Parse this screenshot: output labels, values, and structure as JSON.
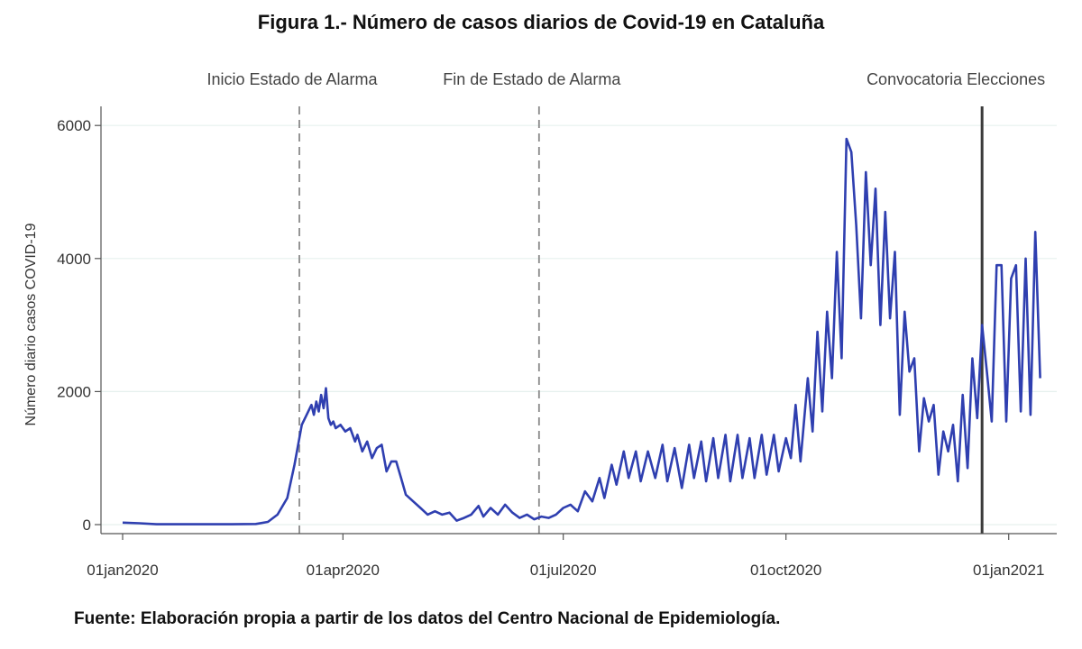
{
  "title": "Figura 1.- Número de casos diarios de Covid-19 en Cataluña",
  "source": "Fuente: Elaboración propia a partir de los datos del Centro Nacional de Epidemiología.",
  "colors": {
    "series": "#2f3fb0",
    "event_line": "#8a8a8a",
    "election_line": "#3a3a3a",
    "grid": "#e6f0ee",
    "axis": "#555555"
  },
  "chart_data": {
    "type": "line",
    "title": "Figura 1.- Número de casos diarios de Covid-19 en Cataluña",
    "xlabel": "",
    "ylabel": "Número diario casos COVID-19",
    "ylim": [
      0,
      6000
    ],
    "xlim": [
      "2020-01-01",
      "2021-01-15"
    ],
    "yticks": [
      0,
      2000,
      4000,
      6000
    ],
    "xticks": [
      {
        "date": "2020-01-01",
        "label": "01jan2020"
      },
      {
        "date": "2020-04-01",
        "label": "01apr2020"
      },
      {
        "date": "2020-07-01",
        "label": "01jul2020"
      },
      {
        "date": "2020-10-01",
        "label": "01oct2020"
      },
      {
        "date": "2021-01-01",
        "label": "01jan2021"
      }
    ],
    "grid": true,
    "legend": "none",
    "events": [
      {
        "date": "2020-03-14",
        "label": "Inicio Estado de Alarma",
        "style": "dashed"
      },
      {
        "date": "2020-06-21",
        "label": "Fin de Estado de Alarma",
        "style": "dashed"
      },
      {
        "date": "2020-12-21",
        "label": "Convocatoria Elecciones",
        "style": "solid"
      }
    ],
    "series": [
      {
        "points": [
          [
            "2020-01-01",
            30
          ],
          [
            "2020-01-08",
            20
          ],
          [
            "2020-01-15",
            5
          ],
          [
            "2020-02-01",
            5
          ],
          [
            "2020-02-15",
            5
          ],
          [
            "2020-02-25",
            10
          ],
          [
            "2020-03-01",
            40
          ],
          [
            "2020-03-05",
            150
          ],
          [
            "2020-03-09",
            400
          ],
          [
            "2020-03-12",
            900
          ],
          [
            "2020-03-15",
            1500
          ],
          [
            "2020-03-17",
            1650
          ],
          [
            "2020-03-19",
            1800
          ],
          [
            "2020-03-20",
            1650
          ],
          [
            "2020-03-21",
            1850
          ],
          [
            "2020-03-22",
            1700
          ],
          [
            "2020-03-23",
            1950
          ],
          [
            "2020-03-24",
            1750
          ],
          [
            "2020-03-25",
            2050
          ],
          [
            "2020-03-26",
            1600
          ],
          [
            "2020-03-27",
            1500
          ],
          [
            "2020-03-28",
            1550
          ],
          [
            "2020-03-29",
            1450
          ],
          [
            "2020-03-31",
            1500
          ],
          [
            "2020-04-02",
            1400
          ],
          [
            "2020-04-04",
            1450
          ],
          [
            "2020-04-06",
            1250
          ],
          [
            "2020-04-07",
            1350
          ],
          [
            "2020-04-09",
            1100
          ],
          [
            "2020-04-11",
            1250
          ],
          [
            "2020-04-13",
            1000
          ],
          [
            "2020-04-15",
            1150
          ],
          [
            "2020-04-17",
            1200
          ],
          [
            "2020-04-19",
            800
          ],
          [
            "2020-04-21",
            950
          ],
          [
            "2020-04-23",
            950
          ],
          [
            "2020-04-25",
            700
          ],
          [
            "2020-04-27",
            450
          ],
          [
            "2020-04-30",
            350
          ],
          [
            "2020-05-03",
            250
          ],
          [
            "2020-05-06",
            150
          ],
          [
            "2020-05-09",
            200
          ],
          [
            "2020-05-12",
            150
          ],
          [
            "2020-05-15",
            180
          ],
          [
            "2020-05-18",
            60
          ],
          [
            "2020-05-21",
            100
          ],
          [
            "2020-05-24",
            150
          ],
          [
            "2020-05-27",
            280
          ],
          [
            "2020-05-29",
            120
          ],
          [
            "2020-06-01",
            250
          ],
          [
            "2020-06-04",
            150
          ],
          [
            "2020-06-07",
            300
          ],
          [
            "2020-06-10",
            180
          ],
          [
            "2020-06-13",
            100
          ],
          [
            "2020-06-16",
            150
          ],
          [
            "2020-06-19",
            80
          ],
          [
            "2020-06-22",
            120
          ],
          [
            "2020-06-25",
            100
          ],
          [
            "2020-06-28",
            150
          ],
          [
            "2020-07-01",
            250
          ],
          [
            "2020-07-04",
            300
          ],
          [
            "2020-07-07",
            200
          ],
          [
            "2020-07-10",
            500
          ],
          [
            "2020-07-13",
            350
          ],
          [
            "2020-07-16",
            700
          ],
          [
            "2020-07-18",
            400
          ],
          [
            "2020-07-21",
            900
          ],
          [
            "2020-07-23",
            600
          ],
          [
            "2020-07-26",
            1100
          ],
          [
            "2020-07-28",
            700
          ],
          [
            "2020-07-31",
            1100
          ],
          [
            "2020-08-02",
            650
          ],
          [
            "2020-08-05",
            1100
          ],
          [
            "2020-08-08",
            700
          ],
          [
            "2020-08-11",
            1200
          ],
          [
            "2020-08-13",
            650
          ],
          [
            "2020-08-16",
            1150
          ],
          [
            "2020-08-19",
            550
          ],
          [
            "2020-08-22",
            1200
          ],
          [
            "2020-08-24",
            700
          ],
          [
            "2020-08-27",
            1250
          ],
          [
            "2020-08-29",
            650
          ],
          [
            "2020-09-01",
            1300
          ],
          [
            "2020-09-03",
            700
          ],
          [
            "2020-09-06",
            1350
          ],
          [
            "2020-09-08",
            650
          ],
          [
            "2020-09-11",
            1350
          ],
          [
            "2020-09-13",
            700
          ],
          [
            "2020-09-16",
            1300
          ],
          [
            "2020-09-18",
            700
          ],
          [
            "2020-09-21",
            1350
          ],
          [
            "2020-09-23",
            750
          ],
          [
            "2020-09-26",
            1350
          ],
          [
            "2020-09-28",
            800
          ],
          [
            "2020-10-01",
            1300
          ],
          [
            "2020-10-03",
            1000
          ],
          [
            "2020-10-05",
            1800
          ],
          [
            "2020-10-07",
            950
          ],
          [
            "2020-10-10",
            2200
          ],
          [
            "2020-10-12",
            1400
          ],
          [
            "2020-10-14",
            2900
          ],
          [
            "2020-10-16",
            1700
          ],
          [
            "2020-10-18",
            3200
          ],
          [
            "2020-10-20",
            2200
          ],
          [
            "2020-10-22",
            4100
          ],
          [
            "2020-10-24",
            2500
          ],
          [
            "2020-10-26",
            5800
          ],
          [
            "2020-10-28",
            5600
          ],
          [
            "2020-10-30",
            4500
          ],
          [
            "2020-11-01",
            3100
          ],
          [
            "2020-11-03",
            5300
          ],
          [
            "2020-11-05",
            3900
          ],
          [
            "2020-11-07",
            5050
          ],
          [
            "2020-11-09",
            3000
          ],
          [
            "2020-11-11",
            4700
          ],
          [
            "2020-11-13",
            3100
          ],
          [
            "2020-11-15",
            4100
          ],
          [
            "2020-11-17",
            1650
          ],
          [
            "2020-11-19",
            3200
          ],
          [
            "2020-11-21",
            2300
          ],
          [
            "2020-11-23",
            2500
          ],
          [
            "2020-11-25",
            1100
          ],
          [
            "2020-11-27",
            1900
          ],
          [
            "2020-11-29",
            1550
          ],
          [
            "2020-12-01",
            1800
          ],
          [
            "2020-12-03",
            750
          ],
          [
            "2020-12-05",
            1400
          ],
          [
            "2020-12-07",
            1100
          ],
          [
            "2020-12-09",
            1500
          ],
          [
            "2020-12-11",
            650
          ],
          [
            "2020-12-13",
            1950
          ],
          [
            "2020-12-15",
            850
          ],
          [
            "2020-12-17",
            2500
          ],
          [
            "2020-12-19",
            1600
          ],
          [
            "2020-12-21",
            3000
          ],
          [
            "2020-12-23",
            2300
          ],
          [
            "2020-12-25",
            1550
          ],
          [
            "2020-12-27",
            3900
          ],
          [
            "2020-12-29",
            3900
          ],
          [
            "2020-12-31",
            1550
          ],
          [
            "2021-01-02",
            3700
          ],
          [
            "2021-01-04",
            3900
          ],
          [
            "2021-01-06",
            1700
          ],
          [
            "2021-01-08",
            4000
          ],
          [
            "2021-01-10",
            1650
          ],
          [
            "2021-01-12",
            4400
          ],
          [
            "2021-01-14",
            2200
          ]
        ]
      }
    ]
  }
}
